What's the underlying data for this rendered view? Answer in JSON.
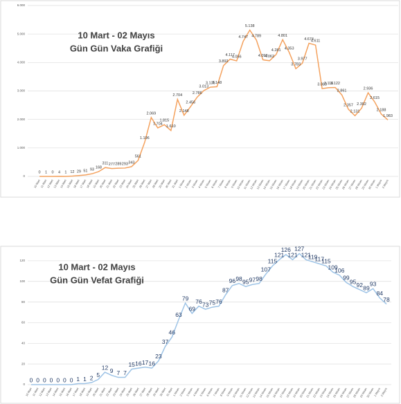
{
  "chart_data": [
    {
      "type": "line",
      "title": "10 Mart - 02 Mayıs",
      "subtitle": "Gün Gün Vaka Grafiği",
      "categories": [
        "10 Mart",
        "11 Mart",
        "12 Mart",
        "13 Mart",
        "14 Mart",
        "15 Mart",
        "16 Mart",
        "17 Mart",
        "18 Mart",
        "19 Mart",
        "20 Mart",
        "21 Mart",
        "22 Mart",
        "23 Mart",
        "24 Mart",
        "25 Mart",
        "26 Mart",
        "27 Mart",
        "28 Mart",
        "29 Mart",
        "30 Mart",
        "31 Mart",
        "1 Nisan",
        "2 Nisan",
        "3 Nisan",
        "4 Nisan",
        "5 Nisan",
        "6 Nisan",
        "7 Nisan",
        "8 Nisan",
        "9 Nisan",
        "10 Nisan",
        "11 Nisan",
        "12 Nisan",
        "13 Nisan",
        "14 Nisan",
        "15 Nisan",
        "16 Nisan",
        "17 Nisan",
        "18 Nisan",
        "19 Nisan",
        "20 Nisan",
        "21 Nisan",
        "22 Nisan",
        "23 Nisan",
        "24 Nisan",
        "25 Nisan",
        "26 Nisan",
        "27 Nisan",
        "28 Nisan",
        "29 Nisan",
        "30 Nisan",
        "1 Mayıs",
        "2 Mayıs"
      ],
      "values": [
        0,
        1,
        0,
        4,
        1,
        12,
        29,
        51,
        93,
        168,
        311,
        277,
        289,
        293,
        343,
        561,
        1196,
        2069,
        1704,
        1815,
        1610,
        2704,
        2148,
        2456,
        2786,
        3013,
        3135,
        3148,
        3892,
        4117,
        4056,
        4747,
        5138,
        4789,
        4093,
        4062,
        4281,
        4801,
        4353,
        3783,
        3977,
        4674,
        4611,
        3083,
        3116,
        3122,
        2861,
        2357,
        2131,
        2392,
        2936,
        2615,
        2188,
        1983
      ],
      "value_labels": [
        "0",
        "1",
        "0",
        "4",
        "1",
        "12",
        "29",
        "51",
        "93",
        "168",
        "311",
        "277",
        "289",
        "293",
        "343",
        "561",
        "1.196",
        "2.069",
        "1.704",
        "1.815",
        "1.610",
        "2.704",
        "2.148",
        "2.456",
        "2.786",
        "3.013",
        "3.135",
        "3.148",
        "3.892",
        "4.117",
        "4.056",
        "4.747",
        "5.138",
        "4.789",
        "4.093",
        "4.062",
        "4.281",
        "4.801",
        "4.353",
        "3.783",
        "3.977",
        "4.674",
        "4.611",
        "3.083",
        "3.116",
        "3.122",
        "2.861",
        "2.357",
        "2.131",
        "2.392",
        "2.936",
        "2.615",
        "2.188",
        "1.983"
      ],
      "color": "#f4a15d",
      "ylim": [
        0,
        6000
      ],
      "yticks": [
        0,
        {
          "value": 1000,
          "label": "1.000"
        },
        {
          "value": 2000,
          "label": "2.000"
        },
        {
          "value": 3000,
          "label": "3.000"
        },
        {
          "value": 4000,
          "label": "4.000"
        },
        {
          "value": 5000,
          "label": "5.000"
        },
        {
          "value": 6000,
          "label": "6.000"
        }
      ],
      "grid": true
    },
    {
      "type": "line",
      "title": "10 Mart - 02 Mayıs",
      "subtitle": "Gün Gün Vefat Grafiği",
      "categories": [
        "10 Mart",
        "11 Mart",
        "12 Mart",
        "13 Mart",
        "14 Mart",
        "15 Mart",
        "16 Mart",
        "17 Mart",
        "18 Mart",
        "19 Mart",
        "20 Mart",
        "21 Mart",
        "22 Mart",
        "23 Mart",
        "24 Mart",
        "25 Mart",
        "26 Mart",
        "27 Mart",
        "28 Mart",
        "29 Mart",
        "30 Mart",
        "31 Mart",
        "1 Nisan",
        "2 Nisan",
        "3 Nisan",
        "4 Nisan",
        "5 Nisan",
        "6 Nisan",
        "7 Nisan",
        "8 Nisan",
        "9 Nisan",
        "10 Nisan",
        "11 Nisan",
        "12 Nisan",
        "13 Nisan",
        "14 Nisan",
        "15 Nisan",
        "16 Nisan",
        "17 Nisan",
        "18 Nisan",
        "19 Nisan",
        "20 Nisan",
        "21 Nisan",
        "22 Nisan",
        "23 Nisan",
        "24 Nisan",
        "25 Nisan",
        "26 Nisan",
        "27 Nisan",
        "28 Nisan",
        "29 Nisan",
        "30 Nisan",
        "1 Mayıs",
        "2 Mayıs"
      ],
      "values": [
        0,
        0,
        0,
        0,
        0,
        0,
        0,
        1,
        1,
        2,
        5,
        12,
        9,
        7,
        7,
        15,
        16,
        17,
        16,
        23,
        37,
        46,
        63,
        79,
        69,
        76,
        73,
        75,
        76,
        87,
        96,
        98,
        95,
        97,
        98,
        107,
        115,
        121,
        126,
        121,
        127,
        121,
        119,
        117,
        115,
        109,
        106,
        99,
        95,
        92,
        89,
        93,
        84,
        78
      ],
      "color": "#9dc3e6",
      "ylim": [
        0,
        130
      ],
      "yticks": [
        0,
        20,
        40,
        60,
        80,
        100,
        120
      ],
      "grid": true
    }
  ]
}
